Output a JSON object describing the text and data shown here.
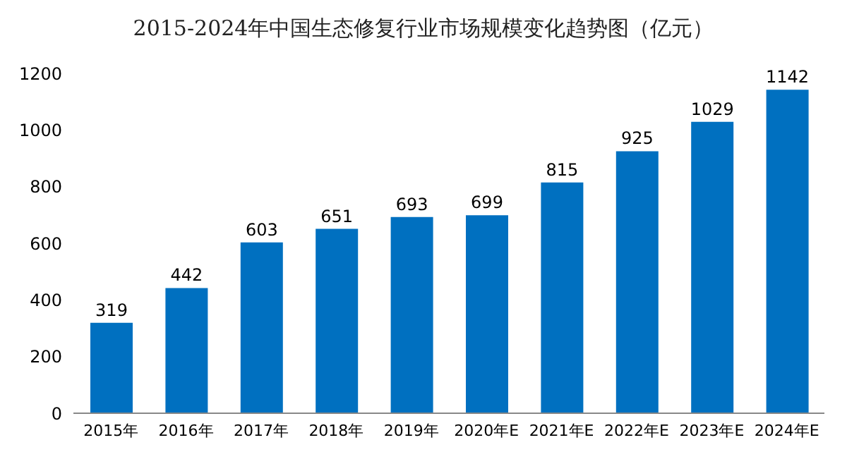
{
  "chart_data": {
    "type": "bar",
    "title": "2015-2024年中国生态修复行业市场规模变化趋势图（亿元）",
    "categories": [
      "2015年",
      "2016年",
      "2017年",
      "2018年",
      "2019年",
      "2020年E",
      "2021年E",
      "2022年E",
      "2023年E",
      "2024年E"
    ],
    "values": [
      319,
      442,
      603,
      651,
      693,
      699,
      815,
      925,
      1029,
      1142
    ],
    "color": "#0070c0",
    "ylim": [
      0,
      1200
    ],
    "yticks": [
      0,
      200,
      400,
      600,
      800,
      1000,
      1200
    ],
    "grid": false,
    "data_labels": true
  }
}
